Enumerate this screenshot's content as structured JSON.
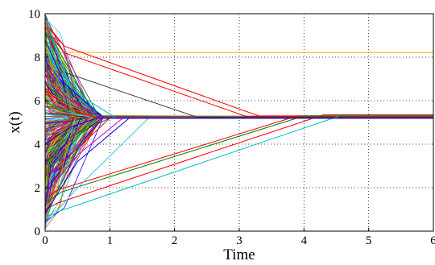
{
  "chart_data": {
    "type": "line",
    "title": "",
    "xlabel": "Time",
    "ylabel": "x(t)",
    "xlim": [
      0,
      6
    ],
    "ylim": [
      0,
      10
    ],
    "xticks": [
      "0",
      "1",
      "2",
      "3",
      "4",
      "5",
      "6"
    ],
    "yticks": [
      "0",
      "2",
      "4",
      "6",
      "8",
      "10"
    ],
    "grid": true,
    "legend": "none",
    "consensus_value": 5.25,
    "colors": {
      "background": "#ffffff",
      "text": "#000000",
      "palette": [
        "#0000ff",
        "#008000",
        "#ff0000",
        "#00bfbf",
        "#bf00bf",
        "#bfbf00",
        "#3f3f3f",
        "#4dbeee",
        "#d95319",
        "#77ac30"
      ]
    },
    "series": [
      {
        "color": "#e6b000",
        "x": [
          0,
          0.05,
          6
        ],
        "y": [
          10,
          8.22,
          8.22
        ]
      },
      {
        "color": "#ff0000",
        "x": [
          0,
          0.3,
          3.3,
          6
        ],
        "y": [
          9.6,
          8.5,
          5.3,
          5.3
        ]
      },
      {
        "color": "#ff0000",
        "x": [
          0,
          0.3,
          3.1,
          6
        ],
        "y": [
          9.4,
          8.2,
          5.28,
          5.28
        ]
      },
      {
        "color": "#3f3f3f",
        "x": [
          0,
          0.3,
          2.35,
          6
        ],
        "y": [
          9.2,
          7.3,
          5.24,
          5.24
        ]
      },
      {
        "color": "#008000",
        "x": [
          0,
          0.1,
          0.8,
          6
        ],
        "y": [
          9.0,
          8.9,
          5.2,
          5.2
        ]
      },
      {
        "color": "#00bfbf",
        "x": [
          0,
          0.3,
          0.8,
          6
        ],
        "y": [
          8.3,
          7.0,
          5.2,
          5.2
        ]
      },
      {
        "color": "#00bfbf",
        "x": [
          0,
          0.2,
          4.6,
          6
        ],
        "y": [
          0.6,
          0.9,
          5.35,
          5.35
        ]
      },
      {
        "color": "#ff0000",
        "x": [
          0,
          0.2,
          4.3,
          6
        ],
        "y": [
          1.0,
          1.3,
          5.35,
          5.35
        ]
      },
      {
        "color": "#ff0000",
        "x": [
          0,
          0.2,
          3.9,
          6
        ],
        "y": [
          1.5,
          1.9,
          5.3,
          5.3
        ]
      },
      {
        "color": "#008000",
        "x": [
          0,
          0.25,
          4.0,
          6
        ],
        "y": [
          1.3,
          1.8,
          5.3,
          5.3
        ]
      },
      {
        "color": "#4dbeee",
        "x": [
          0,
          0.5,
          1.6,
          6
        ],
        "y": [
          0.3,
          2.0,
          5.2,
          5.2
        ]
      },
      {
        "color": "#0000ff",
        "x": [
          0,
          0.5,
          1.3,
          6
        ],
        "y": [
          0.8,
          3.2,
          5.2,
          5.2
        ]
      },
      {
        "color": "#bf00bf",
        "x": [
          0,
          0.5,
          1.2,
          6
        ],
        "y": [
          1.7,
          3.5,
          5.2,
          5.2
        ]
      },
      {
        "color": "#ff0000",
        "x": [
          0,
          0.5,
          1.0,
          6
        ],
        "y": [
          2.5,
          3.8,
          5.2,
          5.2
        ]
      },
      {
        "color": "#00bfbf",
        "x": [
          0,
          0.4,
          1.1,
          6
        ],
        "y": [
          9.8,
          6.5,
          5.2,
          5.2
        ]
      },
      {
        "color": "#0000ff",
        "x": [
          0,
          0.3,
          0.9,
          6
        ],
        "y": [
          8.8,
          6.8,
          5.2,
          5.2
        ]
      },
      {
        "color": "#bf00bf",
        "x": [
          0,
          0.3,
          0.9,
          6
        ],
        "y": [
          7.5,
          6.2,
          5.2,
          5.2
        ]
      },
      {
        "color": "#008000",
        "x": [
          0,
          0.3,
          1.0,
          6
        ],
        "y": [
          3.0,
          4.2,
          5.2,
          5.2
        ]
      },
      {
        "color": "#ff0000",
        "x": [
          0,
          0.4,
          0.8,
          6
        ],
        "y": [
          6.5,
          5.6,
          5.2,
          5.2
        ]
      },
      {
        "color": "#0000ff",
        "x": [
          0,
          0.4,
          0.8,
          6
        ],
        "y": [
          4.0,
          4.8,
          5.2,
          5.2
        ]
      }
    ]
  }
}
